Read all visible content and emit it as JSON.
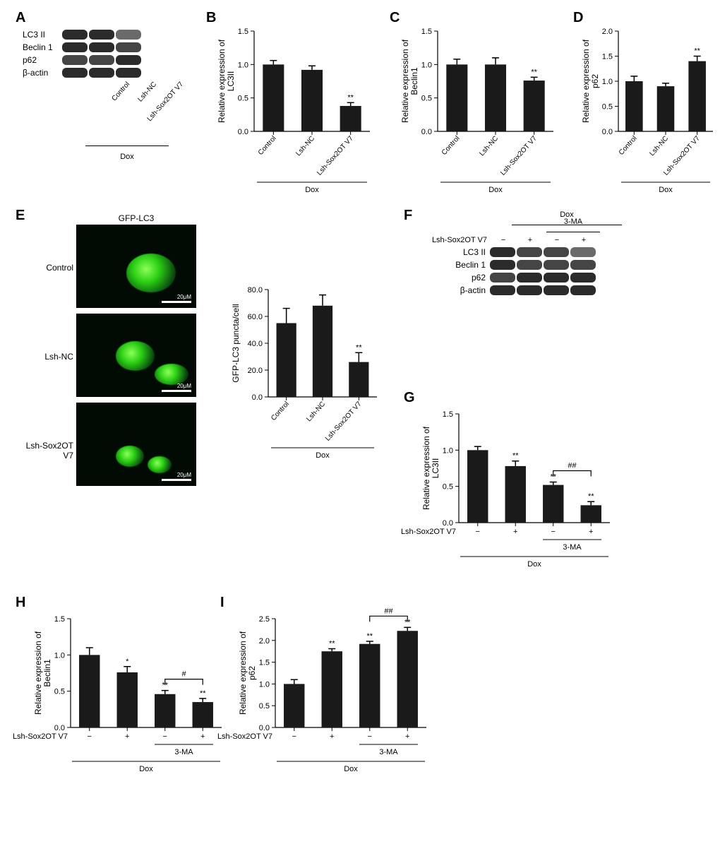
{
  "treatment_label": "Dox",
  "categories3": [
    "Control",
    "Lsh-NC",
    "Lsh-Sox2OT V7"
  ],
  "blotA": {
    "proteins": [
      "LC3 II",
      "Beclin 1",
      "p62",
      "β-actin"
    ]
  },
  "blotF": {
    "treatment_header": "Dox",
    "sub_header": "3-MA",
    "row_label": "Lsh-Sox2OT V7",
    "row_signs": [
      "−",
      "+",
      "−",
      "+"
    ],
    "proteins": [
      "LC3 II",
      "Beclin 1",
      "p62",
      "β-actin"
    ]
  },
  "chartB": {
    "title": "",
    "ylabel": "Relative expression of\nLC3II",
    "ylim": [
      0,
      1.5
    ],
    "ytick_step": 0.5,
    "categories": [
      "Control",
      "Lsh-NC",
      "Lsh-Sox2OT V7"
    ],
    "values": [
      1.0,
      0.92,
      0.38
    ],
    "errors": [
      0.06,
      0.06,
      0.05
    ],
    "sig": [
      "",
      "",
      "**"
    ],
    "bar_color": "#1a1a1a",
    "footer": "Dox"
  },
  "chartC": {
    "ylabel": "Relative expression of\nBeclin1",
    "ylim": [
      0,
      1.5
    ],
    "ytick_step": 0.5,
    "categories": [
      "Control",
      "Lsh-NC",
      "Lsh-Sox2OT V7"
    ],
    "values": [
      1.0,
      1.0,
      0.76
    ],
    "errors": [
      0.08,
      0.1,
      0.05
    ],
    "sig": [
      "",
      "",
      "**"
    ],
    "bar_color": "#1a1a1a",
    "footer": "Dox"
  },
  "chartD": {
    "ylabel": "Relative expression of\np62",
    "ylim": [
      0,
      2.0
    ],
    "ytick_step": 0.5,
    "categories": [
      "Control",
      "Lsh-NC",
      "Lsh-Sox2OT V7"
    ],
    "values": [
      1.0,
      0.9,
      1.4
    ],
    "errors": [
      0.1,
      0.06,
      0.1
    ],
    "sig": [
      "",
      "",
      "**"
    ],
    "bar_color": "#1a1a1a",
    "footer": "Dox"
  },
  "chartE": {
    "ylabel": "GFP-LC3 puncta/cell",
    "ylim": [
      0,
      80
    ],
    "ytick_step": 20,
    "categories": [
      "Control",
      "Lsh-NC",
      "Lsh-Sox2OT V7"
    ],
    "values": [
      55,
      68,
      26
    ],
    "errors": [
      11,
      8,
      7
    ],
    "sig": [
      "",
      "",
      "**"
    ],
    "bar_color": "#1a1a1a",
    "footer": "Dox"
  },
  "chartG": {
    "ylabel": "Relative expression of\nLC3II",
    "ylim": [
      0,
      1.5
    ],
    "ytick_step": 0.5,
    "categories": [
      "−",
      "+",
      "−",
      "+"
    ],
    "row_label": "Lsh-Sox2OT V7",
    "sub_label": "3-MA",
    "values": [
      1.0,
      0.78,
      0.52,
      0.24
    ],
    "errors": [
      0.05,
      0.07,
      0.04,
      0.05
    ],
    "sig": [
      "",
      "**",
      "**",
      "**"
    ],
    "compare": {
      "text": "##",
      "from": 2,
      "to": 3
    },
    "bar_color": "#1a1a1a",
    "footer": "Dox"
  },
  "chartH": {
    "ylabel": "Relative expression of\nBeclin1",
    "ylim": [
      0,
      1.5
    ],
    "ytick_step": 0.5,
    "categories": [
      "−",
      "+",
      "−",
      "+"
    ],
    "row_label": "Lsh-Sox2OT V7",
    "sub_label": "3-MA",
    "values": [
      1.0,
      0.76,
      0.46,
      0.35
    ],
    "errors": [
      0.1,
      0.08,
      0.05,
      0.05
    ],
    "sig": [
      "",
      "*",
      "**",
      "**"
    ],
    "compare": {
      "text": "#",
      "from": 2,
      "to": 3
    },
    "bar_color": "#1a1a1a",
    "footer": "Dox"
  },
  "chartI": {
    "ylabel": "Relative expression of\np62",
    "ylim": [
      0,
      2.5
    ],
    "ytick_step": 0.5,
    "categories": [
      "−",
      "+",
      "−",
      "+"
    ],
    "row_label": "Lsh-Sox2OT V7",
    "sub_label": "3-MA",
    "values": [
      1.0,
      1.75,
      1.92,
      2.22
    ],
    "errors": [
      0.1,
      0.06,
      0.06,
      0.08
    ],
    "sig": [
      "",
      "**",
      "**",
      "**"
    ],
    "compare": {
      "text": "##",
      "from": 2,
      "to": 3
    },
    "bar_color": "#1a1a1a",
    "footer": "Dox"
  },
  "fluoE": {
    "header": "GFP-LC3",
    "panels": [
      "Control",
      "Lsh-NC",
      "Lsh-Sox2OT V7"
    ],
    "scalebar_text": "20μM"
  },
  "panel_labels": {
    "A": "A",
    "B": "B",
    "C": "C",
    "D": "D",
    "E": "E",
    "F": "F",
    "G": "G",
    "H": "H",
    "I": "I"
  }
}
